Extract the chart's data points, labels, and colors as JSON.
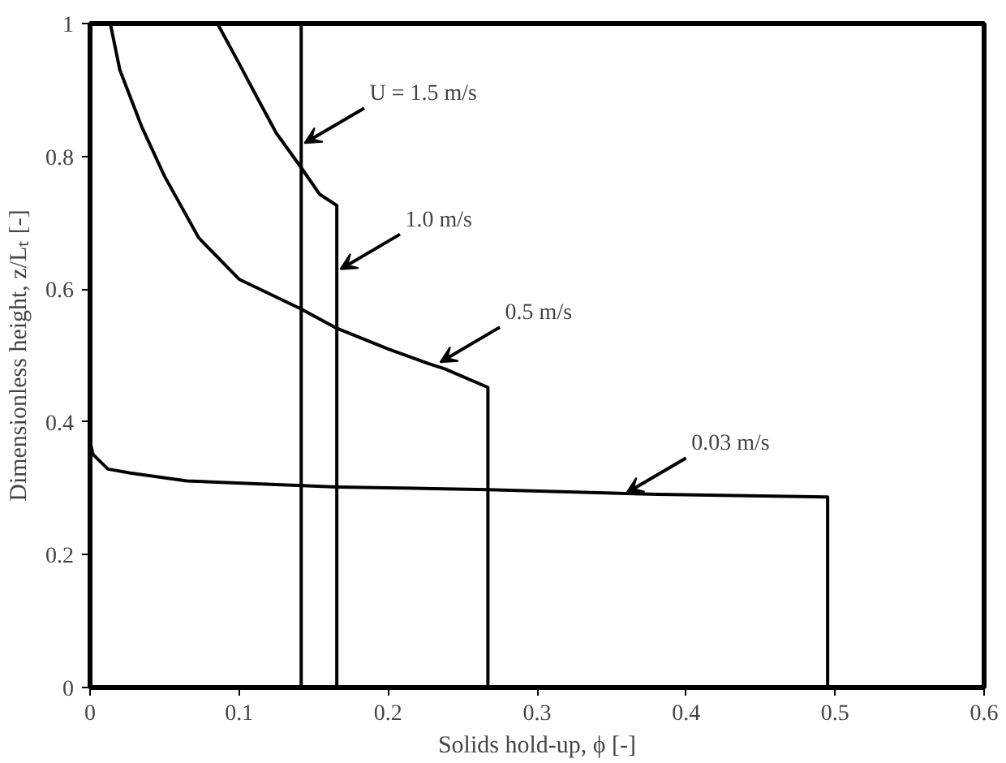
{
  "chart_data": {
    "type": "line",
    "xlabel": "Solids hold-up, ϕ [-]",
    "ylabel": "Dimensionless height, z/Lₜ [-]",
    "xlim": [
      0,
      0.6
    ],
    "ylim": [
      0,
      1
    ],
    "xticks": [
      0,
      0.1,
      0.2,
      0.3,
      0.4,
      0.5,
      0.6
    ],
    "yticks": [
      0,
      0.2,
      0.4,
      0.6,
      0.8,
      1
    ],
    "grid": false,
    "marker": "none",
    "line_style": "solid",
    "series": [
      {
        "color": "#000000",
        "x": [
          0.1417,
          0.1417
        ],
        "values": [
          1,
          0
        ]
      },
      {
        "color": "#000000",
        "x": [
          0.0855,
          0.1,
          0.112,
          0.125,
          0.1417,
          0.154,
          0.1656,
          0.1656
        ],
        "values": [
          1,
          0.94,
          0.889,
          0.835,
          0.783,
          0.743,
          0.726,
          0
        ]
      },
      {
        "color": "#000000",
        "x": [
          0.0136,
          0.02,
          0.0346,
          0.05,
          0.073,
          0.1,
          0.1417,
          0.1656,
          0.2,
          0.227,
          0.238,
          0.267,
          0.267
        ],
        "values": [
          1,
          0.93,
          0.845,
          0.77,
          0.677,
          0.615,
          0.57,
          0.541,
          0.51,
          0.488,
          0.48,
          0.452,
          0
        ]
      },
      {
        "color": "#000000",
        "x": [
          0.0,
          0.002,
          0.012,
          0.027,
          0.065,
          0.166,
          0.267,
          0.381,
          0.495,
          0.495
        ],
        "values": [
          0.37,
          0.351,
          0.329,
          0.323,
          0.311,
          0.302,
          0.298,
          0.291,
          0.287,
          0
        ]
      }
    ],
    "annotations": [
      {
        "text": "U = 1.5 m/s",
        "x": 0.144,
        "y": 0.82
      },
      {
        "text": "1.0 m/s",
        "x": 0.168,
        "y": 0.63
      },
      {
        "text": "0.5 m/s",
        "x": 0.235,
        "y": 0.49
      },
      {
        "text": "0.03 m/s",
        "x": 0.36,
        "y": 0.293
      }
    ]
  }
}
